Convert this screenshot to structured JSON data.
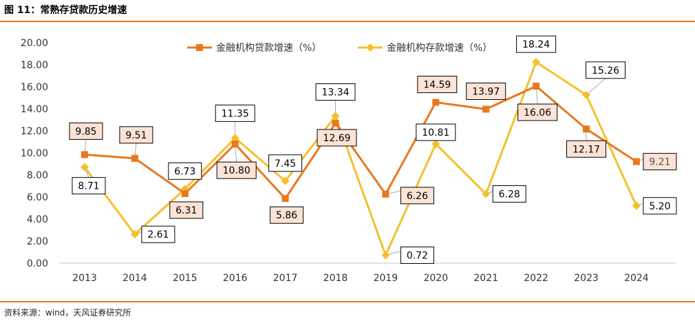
{
  "figure": {
    "title": "图 11：常熟存贷款历史增速",
    "source": "资料来源：wind，天风证券研究所"
  },
  "chart_data": {
    "type": "line",
    "title": "",
    "xlabel": "",
    "ylabel": "",
    "ylim": [
      0,
      20
    ],
    "yticks": [
      "0.00",
      "2.00",
      "4.00",
      "6.00",
      "8.00",
      "10.00",
      "12.00",
      "14.00",
      "16.00",
      "18.00",
      "20.00"
    ],
    "categories": [
      "2013",
      "2014",
      "2015",
      "2016",
      "2017",
      "2018",
      "2019",
      "2020",
      "2021",
      "2022",
      "2023",
      "2024"
    ],
    "legend_position": "top-center",
    "grid": false,
    "series": [
      {
        "name": "金融机构贷款增速（%）",
        "color": "#E8781E",
        "marker": "square",
        "values": [
          9.85,
          9.51,
          6.31,
          10.8,
          5.86,
          12.69,
          6.26,
          14.59,
          13.97,
          16.06,
          12.17,
          9.21
        ],
        "labels": [
          "9.85",
          "9.51",
          "6.31",
          "10.80",
          "5.86",
          "12.69",
          "6.26",
          "14.59",
          "13.97",
          "16.06",
          "12.17",
          "9.21"
        ]
      },
      {
        "name": "金融机构存款增速（%）",
        "color": "#F5C02B",
        "marker": "diamond",
        "values": [
          8.71,
          2.61,
          6.73,
          11.35,
          7.45,
          13.34,
          0.72,
          10.81,
          6.28,
          18.24,
          15.26,
          5.2
        ],
        "labels": [
          "8.71",
          "2.61",
          "6.73",
          "11.35",
          "7.45",
          "13.34",
          "0.72",
          "10.81",
          "6.28",
          "18.24",
          "15.26",
          "5.20"
        ]
      }
    ]
  }
}
